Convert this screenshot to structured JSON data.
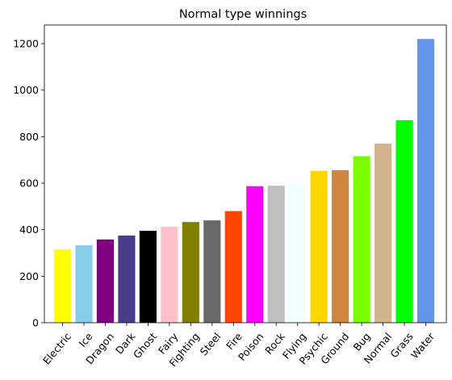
{
  "chart_data": {
    "type": "bar",
    "title": "Normal type winnings",
    "xlabel": "",
    "ylabel": "",
    "categories": [
      "Electric",
      "Ice",
      "Dragon",
      "Dark",
      "Ghost",
      "Fairy",
      "Fighting",
      "Steel",
      "Fire",
      "Poison",
      "Rock",
      "Flying",
      "Psychic",
      "Ground",
      "Bug",
      "Normal",
      "Grass",
      "Water"
    ],
    "values": [
      316,
      333,
      358,
      375,
      395,
      413,
      433,
      440,
      480,
      587,
      589,
      597,
      653,
      656,
      716,
      770,
      871,
      1220
    ],
    "colors": [
      "#ffff00",
      "#87ceeb",
      "#800080",
      "#483d8b",
      "#000000",
      "#ffc0cb",
      "#808000",
      "#696969",
      "#ff4500",
      "#ff00ff",
      "#c0c0c0",
      "#f0ffff",
      "#ffd700",
      "#cd853f",
      "#7cfc00",
      "#d2b48c",
      "#00ff00",
      "#6495ed"
    ],
    "ylim": [
      0,
      1280
    ],
    "yticks": [
      0,
      200,
      400,
      600,
      800,
      1000,
      1200
    ],
    "grid": false,
    "legend": "none"
  }
}
